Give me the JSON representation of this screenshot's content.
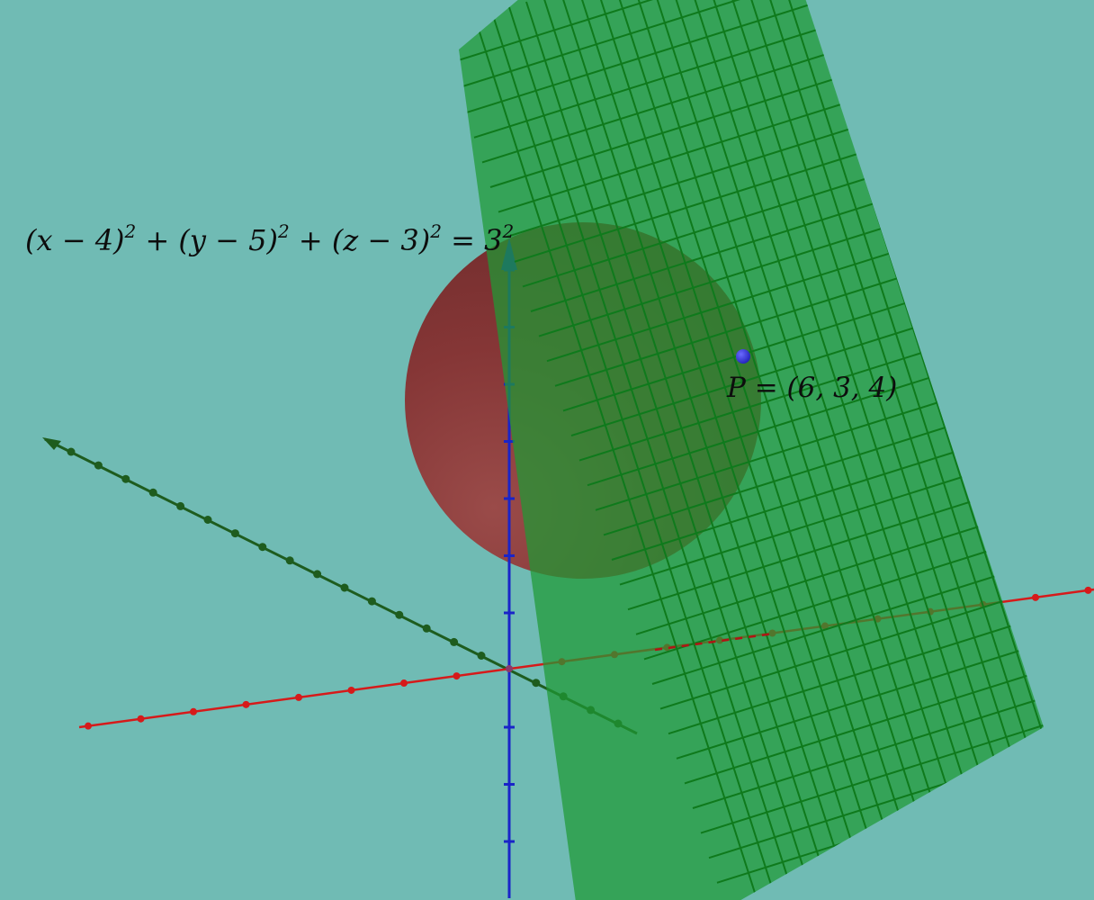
{
  "colors": {
    "background": "#70bbb4",
    "sphere": "#8b3a3a",
    "plane_fill": "#1f9a35",
    "plane_grid": "#0f7a1c",
    "x_axis": "#d61a1a",
    "y_axis": "#1e5c1e",
    "z_axis": "#1a24c8",
    "point": "#3333dd"
  },
  "sphere_equation": {
    "base": "(x − 4)",
    "exp1": "2",
    "plus1": " + (y − 5)",
    "exp2": "2",
    "plus2": " + (z − 3)",
    "exp3": "2",
    "equals": " = 3",
    "exp4": "2"
  },
  "point": {
    "label": "P = (6, 3, 4)",
    "coords": [
      6,
      3,
      4
    ]
  },
  "sphere": {
    "center": [
      4,
      5,
      3
    ],
    "radius": 3
  },
  "icons": [
    "x-axis-arrow-icon",
    "y-axis-arrow-icon",
    "z-axis-arrow-icon"
  ]
}
